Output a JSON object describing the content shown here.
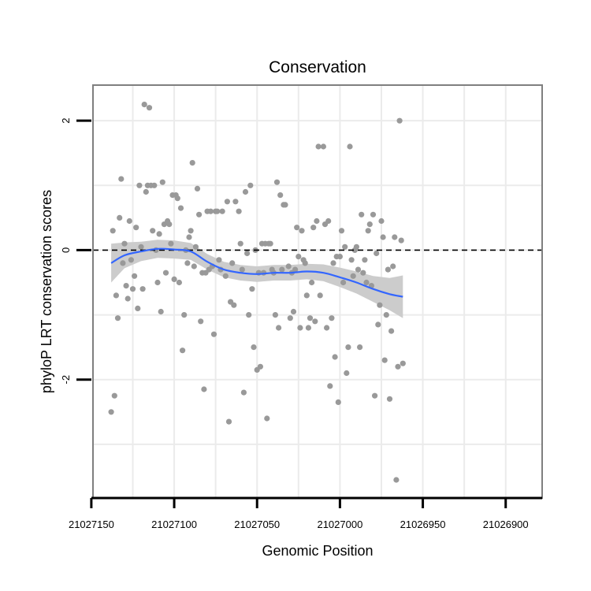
{
  "chart_data": {
    "type": "scatter",
    "title": "Conservation",
    "xlabel": "Genomic Position",
    "ylabel": "phyloP LRT conservation scores",
    "x_reversed": true,
    "xlim": [
      21027149,
      21026878
    ],
    "ylim": [
      -3.83,
      2.55
    ],
    "x_ticks": [
      21027150,
      21027100,
      21027050,
      21027000,
      21026950,
      21026900
    ],
    "x_tick_labels": [
      "21027150",
      "21027100",
      "21027050",
      "21027000",
      "21026950",
      "21026900"
    ],
    "y_ticks": [
      2,
      0,
      -2
    ],
    "y_tick_labels": [
      "2",
      "0",
      "-2"
    ],
    "grid": true,
    "reference_line": {
      "y": 0,
      "style": "dashed"
    },
    "colors": {
      "points": "#999999",
      "smooth": "#3366ff",
      "ribbon": "#cccccc",
      "border": "#7f7f7f",
      "grid": "#ebebeb"
    },
    "points": [
      [
        21027138,
        -2.5
      ],
      [
        21027137,
        0.3
      ],
      [
        21027136,
        -2.25
      ],
      [
        21027135,
        -0.7
      ],
      [
        21027134,
        -1.05
      ],
      [
        21027133,
        0.5
      ],
      [
        21027132,
        1.1
      ],
      [
        21027131,
        -0.2
      ],
      [
        21027130,
        0.1
      ],
      [
        21027129,
        -0.55
      ],
      [
        21027128,
        -0.75
      ],
      [
        21027127,
        0.45
      ],
      [
        21027126,
        -0.15
      ],
      [
        21027125,
        -0.6
      ],
      [
        21027124,
        -0.4
      ],
      [
        21027123,
        0.35
      ],
      [
        21027122,
        -0.9
      ],
      [
        21027121,
        1.0
      ],
      [
        21027120,
        0.05
      ],
      [
        21027119,
        -0.6
      ],
      [
        21027118,
        2.25
      ],
      [
        21027117,
        0.9
      ],
      [
        21027116,
        1.0
      ],
      [
        21027115,
        2.2
      ],
      [
        21027114,
        1.0
      ],
      [
        21027113,
        0.3
      ],
      [
        21027112,
        1.0
      ],
      [
        21027111,
        0.0
      ],
      [
        21027110,
        -0.5
      ],
      [
        21027109,
        0.25
      ],
      [
        21027108,
        -0.95
      ],
      [
        21027107,
        1.05
      ],
      [
        21027106,
        0.4
      ],
      [
        21027105,
        -0.35
      ],
      [
        21027104,
        0.45
      ],
      [
        21027103,
        0.4
      ],
      [
        21027102,
        0.1
      ],
      [
        21027101,
        0.85
      ],
      [
        21027100,
        -0.45
      ],
      [
        21027099,
        0.85
      ],
      [
        21027098,
        0.8
      ],
      [
        21027097,
        -0.5
      ],
      [
        21027096,
        0.65
      ],
      [
        21027095,
        -1.55
      ],
      [
        21027094,
        -1.0
      ],
      [
        21027093,
        0.0
      ],
      [
        21027092,
        -0.2
      ],
      [
        21027091,
        0.2
      ],
      [
        21027090,
        0.3
      ],
      [
        21027089,
        1.35
      ],
      [
        21027088,
        -0.25
      ],
      [
        21027087,
        0.05
      ],
      [
        21027086,
        0.95
      ],
      [
        21027085,
        0.55
      ],
      [
        21027084,
        -1.1
      ],
      [
        21027083,
        -0.35
      ],
      [
        21027082,
        -2.15
      ],
      [
        21027081,
        -0.35
      ],
      [
        21027080,
        0.6
      ],
      [
        21027079,
        -0.3
      ],
      [
        21027078,
        0.6
      ],
      [
        21027077,
        -0.25
      ],
      [
        21027076,
        -1.3
      ],
      [
        21027075,
        0.6
      ],
      [
        21027074,
        0.6
      ],
      [
        21027073,
        -0.15
      ],
      [
        21027072,
        -0.3
      ],
      [
        21027071,
        0.6
      ],
      [
        21027069,
        -0.4
      ],
      [
        21027068,
        0.75
      ],
      [
        21027067,
        -2.65
      ],
      [
        21027066,
        -0.8
      ],
      [
        21027065,
        -0.2
      ],
      [
        21027064,
        -0.85
      ],
      [
        21027063,
        0.75
      ],
      [
        21027061,
        0.6
      ],
      [
        21027060,
        0.1
      ],
      [
        21027059,
        -0.3
      ],
      [
        21027058,
        -2.2
      ],
      [
        21027057,
        0.9
      ],
      [
        21027056,
        -0.05
      ],
      [
        21027055,
        -1.0
      ],
      [
        21027054,
        1.0
      ],
      [
        21027053,
        -0.6
      ],
      [
        21027052,
        -1.5
      ],
      [
        21027051,
        0.0
      ],
      [
        21027050,
        -1.85
      ],
      [
        21027049,
        -0.35
      ],
      [
        21027048,
        -1.8
      ],
      [
        21027047,
        0.1
      ],
      [
        21027046,
        -0.35
      ],
      [
        21027045,
        0.1
      ],
      [
        21027044,
        -2.6
      ],
      [
        21027043,
        0.1
      ],
      [
        21027042,
        0.1
      ],
      [
        21027041,
        -0.3
      ],
      [
        21027040,
        -0.35
      ],
      [
        21027039,
        -1.0
      ],
      [
        21027038,
        1.05
      ],
      [
        21027037,
        -1.2
      ],
      [
        21027036,
        0.85
      ],
      [
        21027035,
        -0.3
      ],
      [
        21027034,
        0.7
      ],
      [
        21027033,
        0.7
      ],
      [
        21027031,
        -0.25
      ],
      [
        21027030,
        -1.05
      ],
      [
        21027029,
        -0.35
      ],
      [
        21027028,
        -0.95
      ],
      [
        21027027,
        -0.3
      ],
      [
        21027026,
        0.35
      ],
      [
        21027025,
        -0.1
      ],
      [
        21027024,
        -1.2
      ],
      [
        21027023,
        0.3
      ],
      [
        21027022,
        -0.15
      ],
      [
        21027021,
        -0.2
      ],
      [
        21027020,
        -0.7
      ],
      [
        21027019,
        -1.2
      ],
      [
        21027018,
        -1.05
      ],
      [
        21027017,
        -0.5
      ],
      [
        21027016,
        0.35
      ],
      [
        21027015,
        -1.1
      ],
      [
        21027014,
        0.45
      ],
      [
        21027013,
        1.6
      ],
      [
        21027012,
        -0.7
      ],
      [
        21027010,
        1.6
      ],
      [
        21027009,
        0.4
      ],
      [
        21027008,
        -1.2
      ],
      [
        21027007,
        0.45
      ],
      [
        21027006,
        -2.1
      ],
      [
        21027005,
        -1.05
      ],
      [
        21027004,
        -0.2
      ],
      [
        21027003,
        -1.65
      ],
      [
        21027002,
        -0.1
      ],
      [
        21027001,
        -2.35
      ],
      [
        21027000,
        -0.1
      ],
      [
        21026999,
        0.3
      ],
      [
        21026998,
        -0.5
      ],
      [
        21026997,
        0.05
      ],
      [
        21026996,
        -1.9
      ],
      [
        21026995,
        -1.5
      ],
      [
        21026994,
        1.6
      ],
      [
        21026993,
        -0.15
      ],
      [
        21026992,
        -0.4
      ],
      [
        21026991,
        0.0
      ],
      [
        21026990,
        0.05
      ],
      [
        21026989,
        -0.3
      ],
      [
        21026988,
        -1.5
      ],
      [
        21026987,
        0.55
      ],
      [
        21026986,
        -0.35
      ],
      [
        21026985,
        -0.15
      ],
      [
        21026984,
        -0.5
      ],
      [
        21026983,
        0.3
      ],
      [
        21026982,
        0.4
      ],
      [
        21026981,
        -0.55
      ],
      [
        21026980,
        0.55
      ],
      [
        21026979,
        -2.25
      ],
      [
        21026978,
        -0.05
      ],
      [
        21026977,
        -1.15
      ],
      [
        21026976,
        -0.85
      ],
      [
        21026975,
        0.45
      ],
      [
        21026974,
        0.2
      ],
      [
        21026973,
        -1.7
      ],
      [
        21026972,
        -1.0
      ],
      [
        21026971,
        -0.3
      ],
      [
        21026970,
        -2.3
      ],
      [
        21026969,
        -1.25
      ],
      [
        21026968,
        -0.25
      ],
      [
        21026967,
        0.2
      ],
      [
        21026966,
        -3.55
      ],
      [
        21026965,
        -1.8
      ],
      [
        21026964,
        2.0
      ],
      [
        21026963,
        0.15
      ],
      [
        21026962,
        -1.75
      ]
    ],
    "smooth": [
      [
        21027138,
        -0.2
      ],
      [
        21027130,
        -0.08
      ],
      [
        21027120,
        -0.02
      ],
      [
        21027110,
        0.02
      ],
      [
        21027100,
        0.01
      ],
      [
        21027090,
        -0.02
      ],
      [
        21027080,
        -0.18
      ],
      [
        21027070,
        -0.3
      ],
      [
        21027060,
        -0.35
      ],
      [
        21027050,
        -0.37
      ],
      [
        21027040,
        -0.35
      ],
      [
        21027030,
        -0.35
      ],
      [
        21027020,
        -0.33
      ],
      [
        21027010,
        -0.35
      ],
      [
        21027000,
        -0.42
      ],
      [
        21026990,
        -0.5
      ],
      [
        21026980,
        -0.6
      ],
      [
        21026970,
        -0.68
      ],
      [
        21026962,
        -0.72
      ]
    ],
    "band_halfwidth": [
      0.3,
      0.2,
      0.15,
      0.14,
      0.14,
      0.13,
      0.12,
      0.12,
      0.12,
      0.12,
      0.12,
      0.12,
      0.12,
      0.13,
      0.15,
      0.17,
      0.2,
      0.25,
      0.33
    ]
  }
}
